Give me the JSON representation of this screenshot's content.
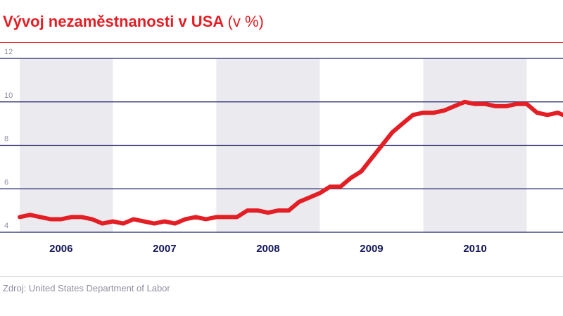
{
  "title": "Vývoj nezaměstnanosti v USA",
  "title_unit": "(v %)",
  "source": "Zdroj: United States Department of Labor",
  "colors": {
    "title": "#e31e24",
    "line": "#e31e24",
    "band": "#ebebef",
    "grid": "#1d2266",
    "tick": "#8e8ea0",
    "year": "#14185a"
  },
  "chart_data": {
    "type": "line",
    "title": "Vývoj nezaměstnanosti v USA",
    "unit": "v %",
    "xlabel": "",
    "ylabel": "",
    "xlim": [
      2005.6,
      2010.85
    ],
    "ylim": [
      4,
      12
    ],
    "yticks": [
      "4",
      "6",
      "8",
      "10",
      "12"
    ],
    "grid": true,
    "legend": "none",
    "year_labels": [
      "2006",
      "2007",
      "2008",
      "2009",
      "2010"
    ],
    "series": [
      {
        "x": [
          2005.6,
          2005.7,
          2005.8,
          2005.9,
          2006.0,
          2006.1,
          2006.2,
          2006.3,
          2006.4,
          2006.5,
          2006.6,
          2006.7,
          2006.8,
          2006.9,
          2007.0,
          2007.1,
          2007.2,
          2007.3,
          2007.4,
          2007.5,
          2007.6,
          2007.7,
          2007.8,
          2007.9,
          2008.0,
          2008.1,
          2008.2,
          2008.3,
          2008.4,
          2008.5,
          2008.6,
          2008.7,
          2008.8,
          2008.9,
          2009.0,
          2009.1,
          2009.2,
          2009.3,
          2009.4,
          2009.5,
          2009.6,
          2009.7,
          2009.8,
          2009.9,
          2010.0,
          2010.1,
          2010.2,
          2010.3,
          2010.4,
          2010.5,
          2010.6,
          2010.7,
          2010.8,
          2010.85
        ],
        "y": [
          4.7,
          4.8,
          4.7,
          4.6,
          4.6,
          4.7,
          4.7,
          4.6,
          4.4,
          4.5,
          4.4,
          4.6,
          4.5,
          4.4,
          4.5,
          4.4,
          4.6,
          4.7,
          4.6,
          4.7,
          4.7,
          4.7,
          5.0,
          5.0,
          4.9,
          5.0,
          5.0,
          5.4,
          5.6,
          5.8,
          6.1,
          6.1,
          6.5,
          6.8,
          7.4,
          8.0,
          8.6,
          9.0,
          9.4,
          9.5,
          9.5,
          9.6,
          9.8,
          10.0,
          9.9,
          9.9,
          9.8,
          9.8,
          9.9,
          9.9,
          9.5,
          9.4,
          9.5,
          9.4
        ]
      }
    ]
  }
}
